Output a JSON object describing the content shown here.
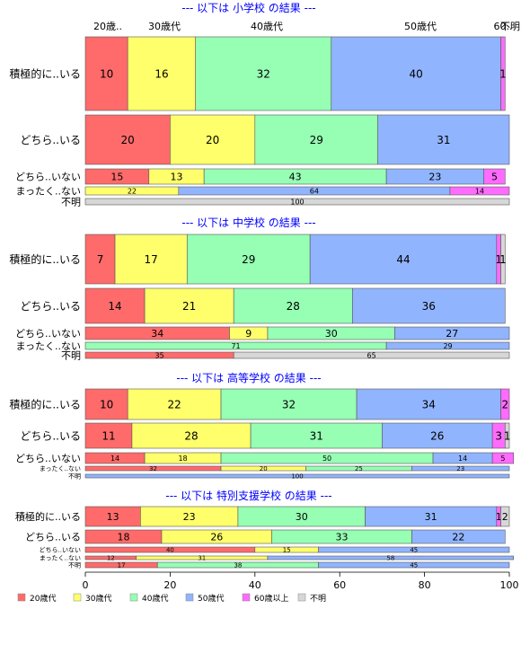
{
  "legend": [
    {
      "label": "20歳代",
      "color": "#ff6b6b"
    },
    {
      "label": "30歳代",
      "color": "#ffff6b"
    },
    {
      "label": "40歳代",
      "color": "#96ffb4"
    },
    {
      "label": "50歳代",
      "color": "#91b4ff"
    },
    {
      "label": "60歳以上",
      "color": "#ff6bff"
    },
    {
      "label": "不明",
      "color": "#d7d7d7"
    }
  ],
  "top_labels": [
    "20歳..",
    "30歳代",
    "40歳代",
    "50歳代",
    "60..",
    "不明"
  ],
  "chart_data": {
    "type": "bar",
    "orientation": "horizontal",
    "stacked": true,
    "bar_height_proportional_to_count": true,
    "xlim": [
      0,
      100
    ],
    "xticks": [
      0,
      20,
      40,
      60,
      80,
      100
    ],
    "xlabel": "",
    "ylabel": "",
    "grid": false,
    "legend_position": "bottom",
    "series_names": [
      "20歳代",
      "30歳代",
      "40歳代",
      "50歳代",
      "60歳以上",
      "不明"
    ],
    "panels": [
      {
        "title": "--- 以下は 小学校 の結果 ---",
        "rows": [
          {
            "label": "積極的に..いる",
            "values": [
              10,
              16,
              32,
              40,
              1,
              0
            ]
          },
          {
            "label": "どちら..いる",
            "values": [
              20,
              20,
              29,
              31,
              0,
              0
            ]
          },
          {
            "label": "どちら..いない",
            "values": [
              15,
              13,
              43,
              23,
              5,
              0
            ]
          },
          {
            "label": "まったく..ない",
            "values": [
              0,
              22,
              0,
              64,
              14,
              0
            ]
          },
          {
            "label": "不明",
            "values": [
              0,
              0,
              0,
              0,
              0,
              100
            ]
          }
        ]
      },
      {
        "title": "--- 以下は 中学校 の結果 ---",
        "rows": [
          {
            "label": "積極的に..いる",
            "values": [
              7,
              17,
              29,
              44,
              1,
              1
            ]
          },
          {
            "label": "どちら..いる",
            "values": [
              14,
              21,
              28,
              36,
              0,
              0
            ]
          },
          {
            "label": "どちら..いない",
            "values": [
              34,
              9,
              30,
              27,
              0,
              0
            ]
          },
          {
            "label": "まったく..ない",
            "values": [
              0,
              0,
              71,
              29,
              0,
              0
            ]
          },
          {
            "label": "不明",
            "values": [
              35,
              0,
              0,
              0,
              0,
              65
            ]
          }
        ]
      },
      {
        "title": "--- 以下は 高等学校 の結果 ---",
        "rows": [
          {
            "label": "積極的に..いる",
            "values": [
              10,
              22,
              32,
              34,
              2,
              0
            ]
          },
          {
            "label": "どちら..いる",
            "values": [
              11,
              28,
              31,
              26,
              3,
              1
            ]
          },
          {
            "label": "どちら..いない",
            "values": [
              14,
              18,
              50,
              14,
              5,
              0
            ]
          },
          {
            "label": "まったく..ない",
            "values": [
              32,
              20,
              25,
              23,
              0,
              0
            ]
          },
          {
            "label": "不明",
            "values": [
              0,
              0,
              0,
              100,
              0,
              0
            ]
          }
        ]
      },
      {
        "title": "--- 以下は 特別支援学校 の結果 ---",
        "rows": [
          {
            "label": "積極的に..いる",
            "values": [
              13,
              23,
              30,
              31,
              1,
              2
            ]
          },
          {
            "label": "どちら..いる",
            "values": [
              18,
              26,
              33,
              22,
              0,
              0
            ]
          },
          {
            "label": "どちら..いない",
            "values": [
              40,
              15,
              0,
              45,
              0,
              0
            ]
          },
          {
            "label": "まったく..ない",
            "values": [
              12,
              31,
              0,
              58,
              0,
              0
            ]
          },
          {
            "label": "不明",
            "values": [
              17,
              0,
              38,
              45,
              0,
              0
            ]
          }
        ]
      }
    ]
  }
}
